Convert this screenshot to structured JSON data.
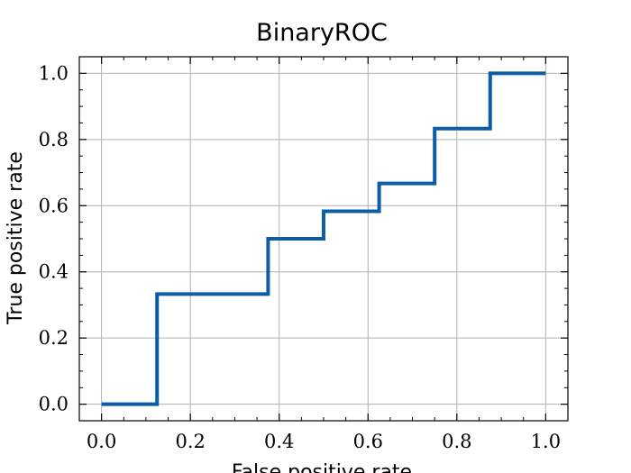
{
  "chart_data": {
    "type": "line",
    "title": "BinaryROC",
    "xlabel": "False positive rate",
    "ylabel": "True positive rate",
    "xlim": [
      -0.05,
      1.05
    ],
    "ylim": [
      -0.05,
      1.05
    ],
    "x_ticks": [
      "0.0",
      "0.2",
      "0.4",
      "0.6",
      "0.8",
      "1.0"
    ],
    "y_ticks": [
      "0.0",
      "0.2",
      "0.4",
      "0.6",
      "0.8",
      "1.0"
    ],
    "x_tick_values": [
      0.0,
      0.2,
      0.4,
      0.6,
      0.8,
      1.0
    ],
    "y_tick_values": [
      0.0,
      0.2,
      0.4,
      0.6,
      0.8,
      1.0
    ],
    "grid": true,
    "series": [
      {
        "color": "#0c5da5",
        "x": [
          0.0,
          0.125,
          0.125,
          0.375,
          0.375,
          0.5,
          0.5,
          0.625,
          0.625,
          0.75,
          0.75,
          0.875,
          0.875,
          1.0
        ],
        "y": [
          0.0,
          0.0,
          0.333,
          0.333,
          0.5,
          0.5,
          0.583,
          0.583,
          0.667,
          0.667,
          0.833,
          0.833,
          1.0,
          1.0
        ]
      }
    ]
  }
}
